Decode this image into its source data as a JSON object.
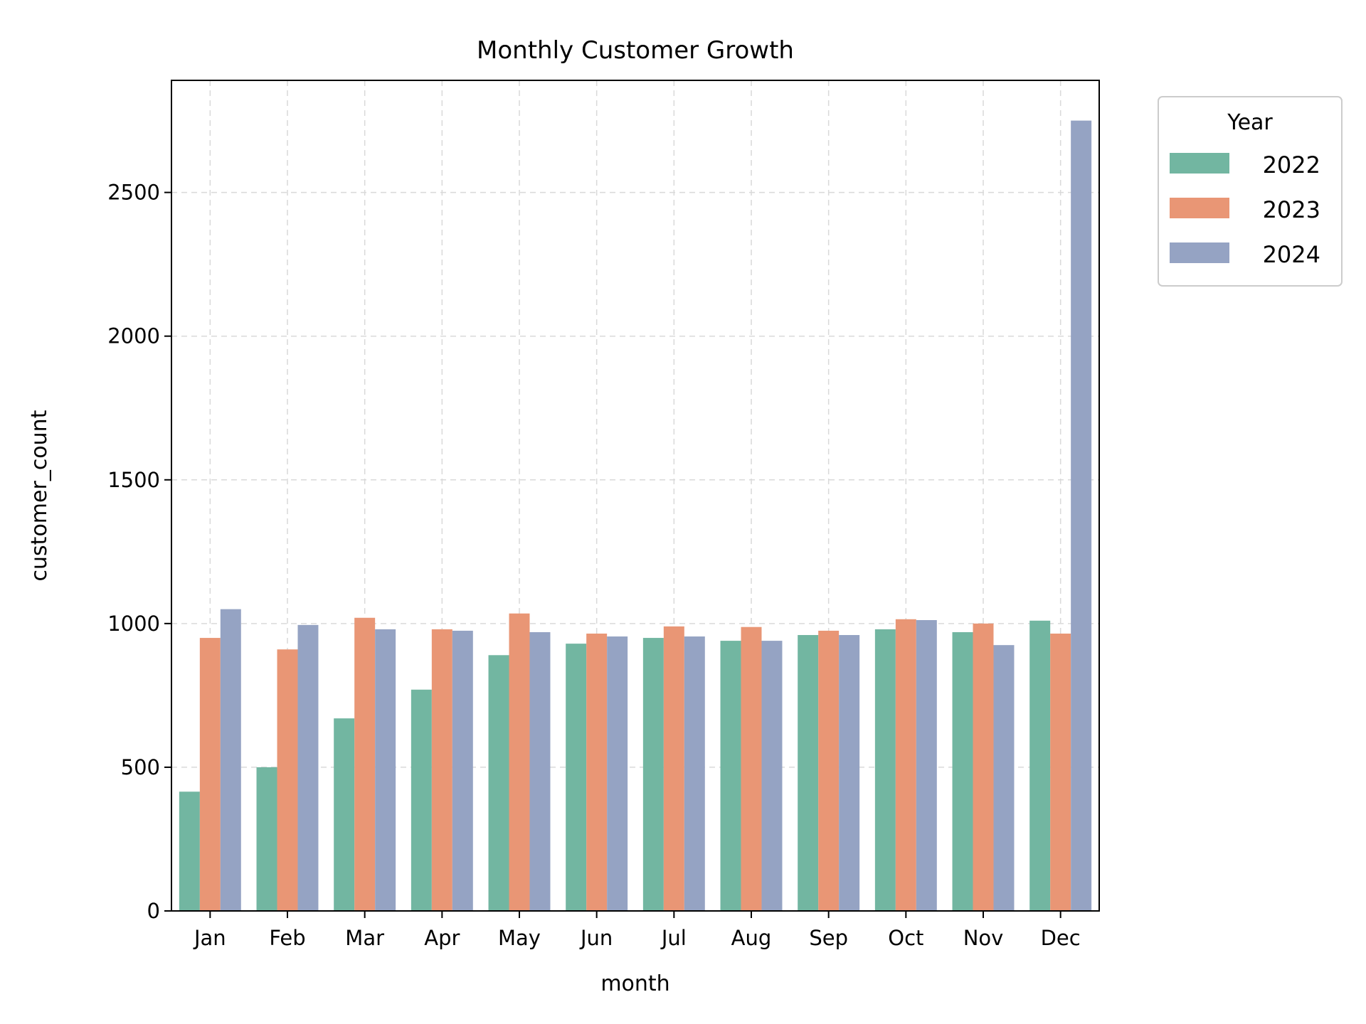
{
  "chart_data": {
    "type": "bar",
    "title": "Monthly Customer Growth",
    "xlabel": "month",
    "ylabel": "customer_count",
    "categories": [
      "Jan",
      "Feb",
      "Mar",
      "Apr",
      "May",
      "Jun",
      "Jul",
      "Aug",
      "Sep",
      "Oct",
      "Nov",
      "Dec"
    ],
    "series": [
      {
        "name": "2022",
        "color": "#72b6a1",
        "values": [
          415,
          500,
          670,
          770,
          890,
          930,
          950,
          940,
          960,
          980,
          970,
          1010
        ]
      },
      {
        "name": "2023",
        "color": "#e99675",
        "values": [
          950,
          910,
          1020,
          980,
          1035,
          965,
          990,
          988,
          975,
          1015,
          1000,
          965
        ]
      },
      {
        "name": "2024",
        "color": "#95a3c3",
        "values": [
          1050,
          995,
          980,
          975,
          970,
          955,
          955,
          940,
          960,
          1012,
          925,
          2750
        ]
      }
    ],
    "ylim": [
      0,
      2890
    ],
    "yticks": [
      0,
      500,
      1000,
      1500,
      2000,
      2500
    ],
    "grid": true,
    "legend": {
      "title": "Year",
      "placement": "outside-top-right"
    }
  }
}
